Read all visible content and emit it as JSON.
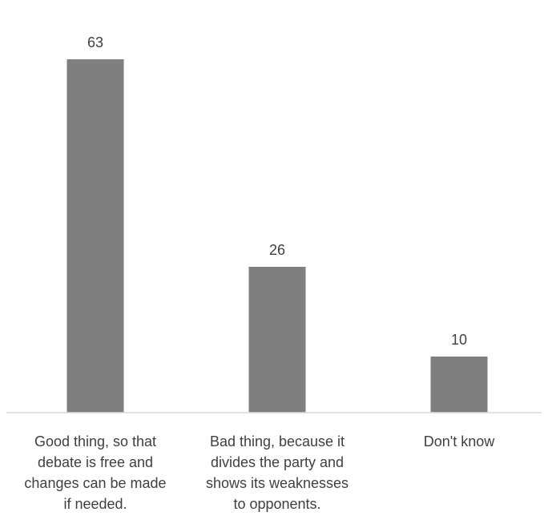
{
  "chart_data": {
    "type": "bar",
    "categories": [
      "Good thing, so that debate is free and changes can be made if needed.",
      "Bad thing, because it divides the party and shows its weaknesses to opponents.",
      "Don't know"
    ],
    "category_lines": [
      [
        "Good thing, so that",
        "debate is free and",
        "changes can be made",
        "if needed."
      ],
      [
        "Bad thing, because it",
        "divides the party and",
        "shows its weaknesses",
        "to opponents."
      ],
      [
        "Don't know"
      ]
    ],
    "values": [
      63,
      26,
      10
    ],
    "data_labels": [
      "63",
      "26",
      "10"
    ],
    "title": "",
    "xlabel": "",
    "ylabel": "",
    "ylim": [
      0,
      70
    ],
    "grid": false,
    "legend": "none",
    "bar_color": "#7f7f7f",
    "axis_color": "#d9d9d9",
    "label_color": "#404040"
  }
}
